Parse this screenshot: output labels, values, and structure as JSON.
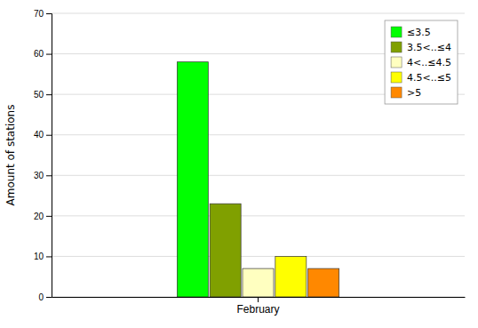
{
  "chart_data": {
    "type": "bar",
    "categories": [
      "February"
    ],
    "series": [
      {
        "name": "≤3.5",
        "color": "#00FF00",
        "values": [
          58
        ]
      },
      {
        "name": "3.5<..≤4",
        "color": "#80A000",
        "values": [
          23
        ]
      },
      {
        "name": "4<..≤4.5",
        "color": "#FFFFC0",
        "values": [
          7
        ]
      },
      {
        "name": "4.5<..≤5",
        "color": "#FFFF00",
        "values": [
          10
        ]
      },
      {
        "name": ">5",
        "color": "#FF8800",
        "values": [
          7
        ]
      }
    ],
    "ylabel": "Amount of stations",
    "ylim": [
      0,
      70
    ],
    "yticks": [
      0,
      10,
      20,
      30,
      40,
      50,
      60,
      70
    ],
    "grid": true,
    "legend": "upper right"
  }
}
